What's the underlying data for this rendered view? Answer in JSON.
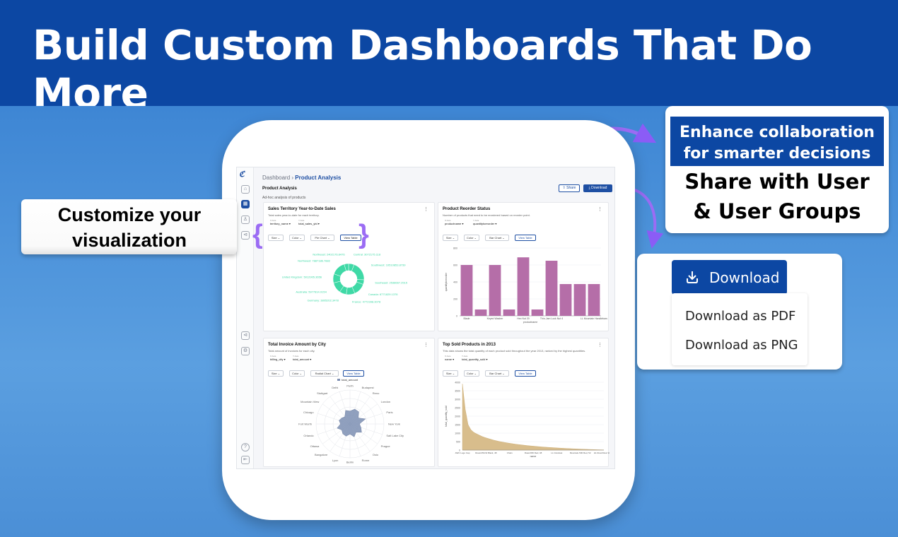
{
  "banner": {
    "title": "Build Custom Dashboards That Do More"
  },
  "callouts": {
    "customize": "Customize your visualization",
    "collab_head": "Enhance collaboration for smarter decisions",
    "collab_body": "Share with User & User Groups",
    "download_button": "Download",
    "download_options": [
      "Download as PDF",
      "Download as PNG"
    ]
  },
  "app": {
    "breadcrumb_root": "Dashboard",
    "breadcrumb_sep": "›",
    "breadcrumb_current": "Product Analysis",
    "page_title": "Product Analysis",
    "page_subtitle": "Ad-hoc analysis of products",
    "share_label": "Share",
    "download_label": "Download",
    "ctrl_size": "Size ⌄",
    "ctrl_color": "Color ⌄",
    "view_table": "View Table",
    "x_axis_label": "X Axis",
    "y_axis_label": "Y Axis"
  },
  "cards": [
    {
      "title": "Sales Territory Year-to-Date Sales",
      "subtitle": "Total sales year-to-date for each territory.",
      "x_field": "territory_name ▾",
      "y_field": "total_sales_ytd ▾",
      "chart_type": "Pie Chart ⌄"
    },
    {
      "title": "Product Reorder Status",
      "subtitle": "Number of products that need to be reordered based on reorder point.",
      "x_field": "productname ▾",
      "y_field": "quantitytoreorder ▾",
      "chart_type": "Bar Chart ⌄"
    },
    {
      "title": "Total Invoice Amount by City",
      "subtitle": "Total amount of invoices for each city.",
      "x_field": "billing_city ▾",
      "y_field": "total_amount ▾",
      "chart_type": "Radial Chart ⌄"
    },
    {
      "title": "Top Sold Products in 2013",
      "subtitle": "This data shows the total quantity of each product sold throughout the year 2013, ranked by the highest quantities.",
      "x_field": "name ▾",
      "y_field": "total_quantity_sold ▾",
      "chart_type": "Bar Chart ⌄"
    }
  ],
  "chart_data": [
    {
      "type": "pie",
      "title": "Sales Territory Year-to-Date Sales",
      "labels": [
        "Central: 3072175.118",
        "Southwest: 10510853.8739",
        "Southeast: 2538667.2515",
        "Canada: 6771829.1376",
        "France: 4772398.3078",
        "Germany: 3805202.3478",
        "Australia: 5977814.9154",
        "United Kingdom: 5012905.3656",
        "Northwest: 7887186.7882",
        "Northeast: 2402176.8476"
      ],
      "values": [
        3072175.118,
        10510853.8739,
        2538667.2515,
        6771829.1376,
        4772398.3078,
        3805202.3478,
        5977814.9154,
        5012905.3656,
        7887186.7882,
        2402176.8476
      ],
      "color": "#3fd9a6"
    },
    {
      "type": "bar",
      "title": "Product Reorder Status",
      "xlabel": "productname",
      "ylabel": "quantitytoreorder",
      "categories": [
        "Blade",
        "",
        "Keyed Washer",
        "",
        "Hex Nut 20",
        "",
        "Thin-Jam Lock Nut 4",
        "",
        "",
        "LL Mountain Handlebars"
      ],
      "tick_labels": [
        "Blade",
        "Keyed Washer",
        "Hex Nut 20",
        "Thin-Jam Lock Nut 4",
        "LL Mountain Handlebars"
      ],
      "values": [
        600,
        75,
        600,
        75,
        690,
        75,
        650,
        375,
        375,
        375
      ],
      "yticks": [
        0,
        200,
        400,
        600,
        800
      ],
      "ylim": [
        0,
        800
      ],
      "color": "#b56ea8"
    },
    {
      "type": "radar",
      "title": "Total Invoice Amount by City",
      "legend": "total_amount",
      "categories": [
        "Perth",
        "Budapest",
        "Reno",
        "London",
        "Paris",
        "New York",
        "Salt Lake City",
        "Prague",
        "Oslo",
        "Rome",
        "Berlin",
        "Lyon",
        "Bangalore",
        "Ottawa",
        "Orlando",
        "Fort Worth",
        "Chicago",
        "Mountain View",
        "Stuttgart",
        "Delhi"
      ],
      "values": [
        38,
        46,
        44,
        30,
        48,
        28,
        34,
        42,
        30,
        40,
        30,
        38,
        36,
        30,
        40,
        28,
        34,
        30,
        26,
        42
      ],
      "color": "#7d8fb3"
    },
    {
      "type": "area",
      "title": "Top Sold Products in 2013",
      "xlabel": "name",
      "ylabel": "total_quantity_sold",
      "tick_labels": [
        "AWC Logo Cap",
        "Road-350-W Black, 48",
        "Chain",
        "Road-650 Red, 48",
        "LL Crankset",
        "Mountain-500 Red, 52",
        "HL Road Rear Wheel"
      ],
      "yticks": [
        0,
        500,
        1000,
        1500,
        2000,
        2500,
        3000,
        3500,
        4000
      ],
      "ylim": [
        0,
        4000
      ],
      "values": [
        3900,
        2400,
        1500,
        1200,
        1050,
        960,
        880,
        800,
        740,
        690,
        640,
        590,
        550,
        510,
        480,
        450,
        420,
        395,
        370,
        345,
        325,
        305,
        285,
        265,
        250,
        235,
        220,
        205,
        190,
        178,
        166,
        155,
        144,
        133,
        123,
        114,
        105,
        96,
        88,
        80,
        72,
        65,
        58,
        51,
        45,
        39,
        33,
        27,
        21,
        16,
        10
      ],
      "color": "#d8bd8c"
    }
  ]
}
